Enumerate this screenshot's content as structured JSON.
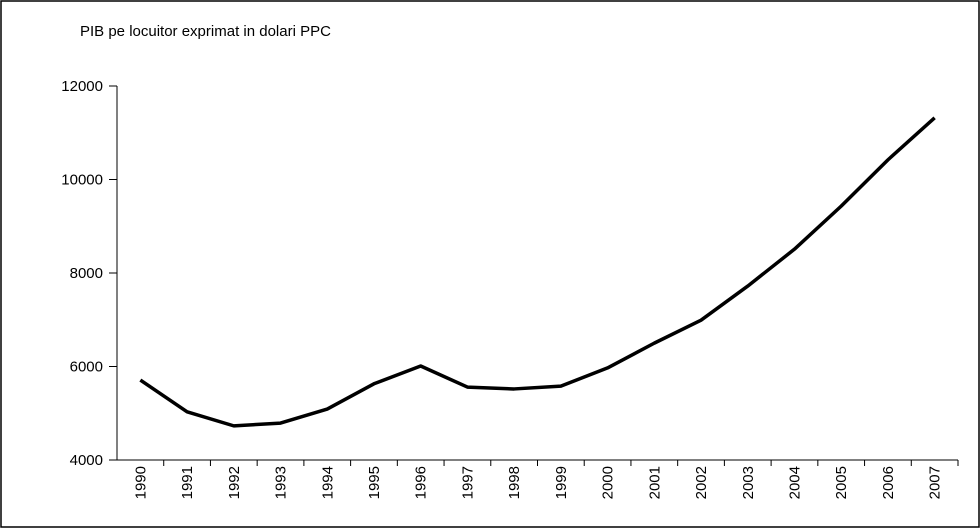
{
  "chart_data": {
    "type": "line",
    "title": "PIB pe locuitor exprimat in dolari PPC",
    "categories": [
      "1990",
      "1991",
      "1992",
      "1993",
      "1994",
      "1995",
      "1996",
      "1997",
      "1998",
      "1999",
      "2000",
      "2001",
      "2002",
      "2003",
      "2004",
      "2005",
      "2006",
      "2007"
    ],
    "series": [
      {
        "name": "PIB pe locuitor",
        "color": "#000000",
        "values": [
          5710,
          5030,
          4730,
          4790,
          5090,
          5630,
          6010,
          5560,
          5520,
          5580,
          5970,
          6500,
          6990,
          7720,
          8510,
          9430,
          10420,
          11320
        ]
      }
    ],
    "ylim": [
      4000,
      12000
    ],
    "yticks": [
      4000,
      6000,
      8000,
      10000,
      12000
    ],
    "grid": false
  }
}
